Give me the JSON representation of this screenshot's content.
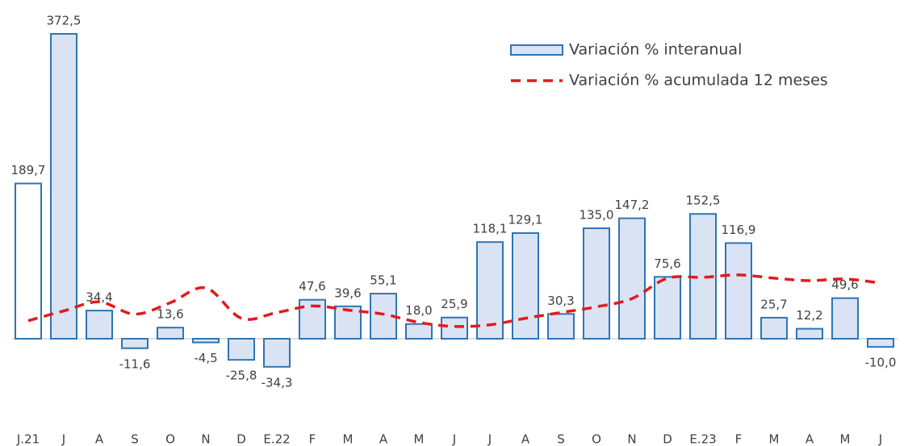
{
  "chart_data": {
    "type": "bar",
    "categories": [
      "J.21",
      "J",
      "A",
      "S",
      "O",
      "N",
      "D",
      "E.22",
      "F",
      "M",
      "A",
      "M",
      "J",
      "J",
      "A",
      "S",
      "O",
      "N",
      "D",
      "E.23",
      "F",
      "M",
      "A",
      "M",
      "J"
    ],
    "series": [
      {
        "name": "Variación % interanual",
        "type": "bar",
        "color": "#2e75b6",
        "fill": "#dae3f3",
        "colors": [
          "#ffffff",
          "#dae3f3",
          "#dae3f3",
          "#dae3f3",
          "#dae3f3",
          "#dae3f3",
          "#dae3f3",
          "#dae3f3",
          "#dae3f3",
          "#dae3f3",
          "#dae3f3",
          "#dae3f3",
          "#dae3f3",
          "#dae3f3",
          "#dae3f3",
          "#dae3f3",
          "#dae3f3",
          "#dae3f3",
          "#dae3f3",
          "#dae3f3",
          "#dae3f3",
          "#dae3f3",
          "#dae3f3",
          "#dae3f3",
          "#dae3f3"
        ],
        "values": [
          189.7,
          372.5,
          34.4,
          -11.6,
          13.6,
          -4.5,
          -25.8,
          -34.3,
          47.6,
          39.6,
          55.1,
          18.0,
          25.9,
          118.1,
          129.1,
          30.3,
          135.0,
          147.2,
          75.6,
          152.5,
          116.9,
          25.7,
          12.2,
          49.6,
          -10.0
        ],
        "value_labels": [
          "189,7",
          "372,5",
          "34,4",
          "-11,6",
          "13,6",
          "-4,5",
          "-25,8",
          "-34,3",
          "47,6",
          "39,6",
          "55,1",
          "18,0",
          "25,9",
          "118,1",
          "129,1",
          "30,3",
          "135,0",
          "147,2",
          "75,6",
          "152,5",
          "116,9",
          "25,7",
          "12,2",
          "49,6",
          "-10,0"
        ]
      },
      {
        "name": "Variación % acumulada 12 meses",
        "type": "line",
        "color": "#e31a1c",
        "dashed": true,
        "values": [
          22,
          34,
          45,
          30,
          44,
          62,
          25,
          32,
          40,
          35,
          30,
          20,
          15,
          17,
          25,
          32,
          39,
          49,
          74,
          75,
          78,
          74,
          71,
          73,
          68
        ]
      }
    ],
    "legend": "top-right"
  }
}
